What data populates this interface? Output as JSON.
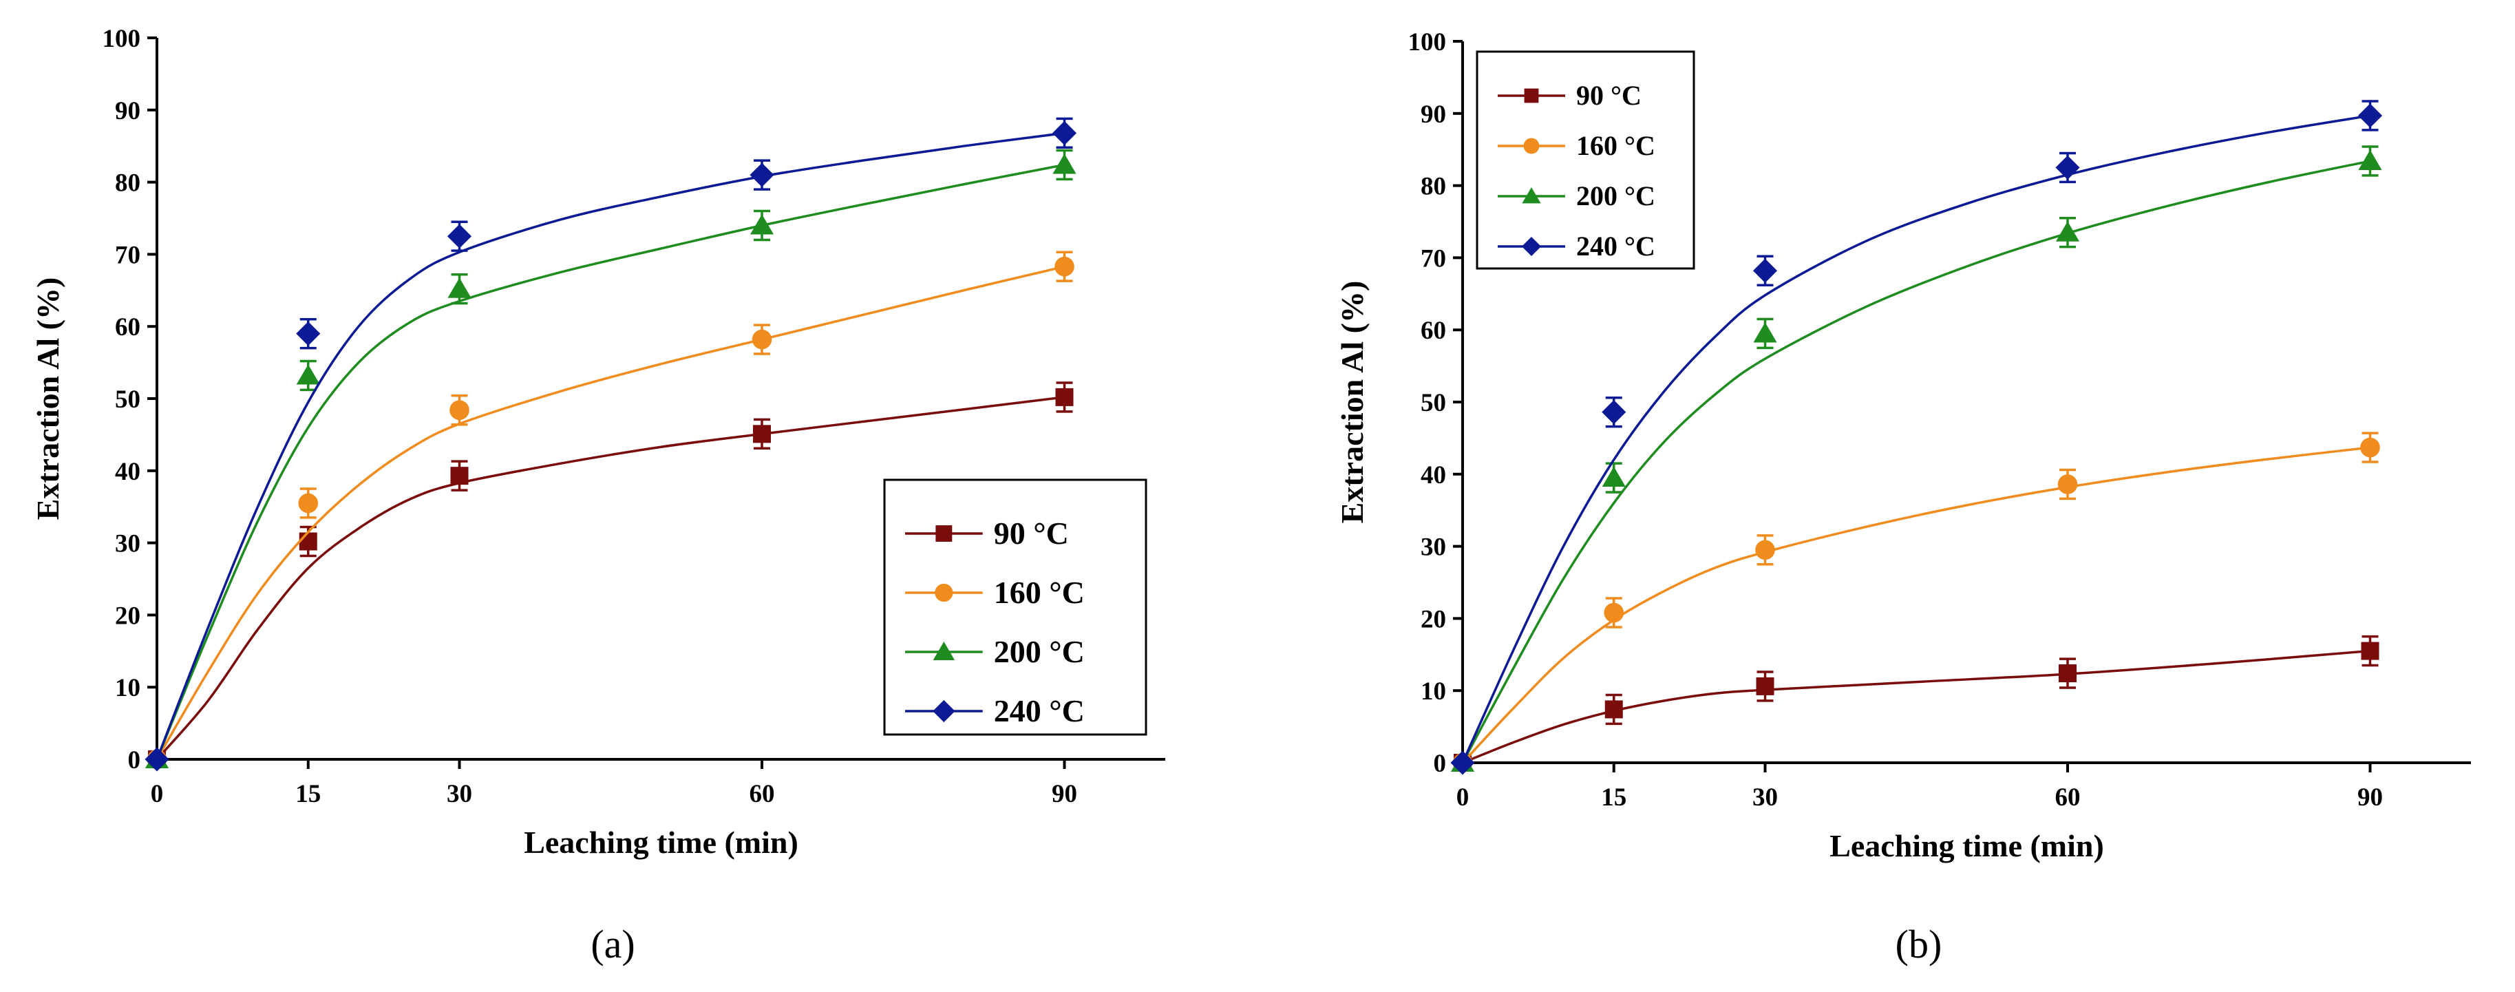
{
  "chart_data": [
    {
      "type": "line",
      "panel_label": "(a)",
      "xlabel": "Leaching time (min)",
      "ylabel": "Extraction Al (%)",
      "x": [
        0,
        15,
        30,
        60,
        90
      ],
      "x_ticks": [
        "0",
        "15",
        "30",
        "60",
        "90"
      ],
      "y_ticks": [
        "0",
        "10",
        "20",
        "30",
        "40",
        "50",
        "60",
        "70",
        "80",
        "90",
        "100"
      ],
      "xlim": [
        0,
        100
      ],
      "ylim": [
        0,
        100
      ],
      "legend_position": "lower-right",
      "series": [
        {
          "name": "90 °C",
          "color": "#7b0c0c",
          "marker": "square",
          "values": [
            0,
            30.2,
            39.3,
            45.1,
            50.2
          ],
          "error": [
            0,
            2,
            2,
            2,
            2
          ],
          "curve": [
            [
              0,
              0
            ],
            [
              5,
              8
            ],
            [
              10,
              18
            ],
            [
              15,
              26.5
            ],
            [
              20,
              32
            ],
            [
              25,
              36
            ],
            [
              30,
              38.3
            ],
            [
              40,
              41
            ],
            [
              50,
              43.3
            ],
            [
              60,
              45.1
            ],
            [
              70,
              46.8
            ],
            [
              80,
              48.5
            ],
            [
              90,
              50.2
            ]
          ]
        },
        {
          "name": "160 °C",
          "color": "#f08c1e",
          "marker": "circle",
          "values": [
            0,
            35.5,
            48.4,
            58.2,
            68.3
          ],
          "error": [
            0,
            2,
            2,
            2,
            2
          ],
          "curve": [
            [
              0,
              0
            ],
            [
              5,
              12
            ],
            [
              10,
              23
            ],
            [
              15,
              31.5
            ],
            [
              20,
              38
            ],
            [
              25,
              43
            ],
            [
              30,
              46.5
            ],
            [
              40,
              51
            ],
            [
              50,
              54.8
            ],
            [
              60,
              58.2
            ],
            [
              70,
              61.6
            ],
            [
              80,
              65
            ],
            [
              90,
              68.3
            ]
          ]
        },
        {
          "name": "200 °C",
          "color": "#1e8c1e",
          "marker": "triangle",
          "values": [
            0,
            53.2,
            65.2,
            74.0,
            82.4
          ],
          "error": [
            0,
            2,
            2,
            2,
            2
          ],
          "curve": [
            [
              0,
              0
            ],
            [
              5,
              17
            ],
            [
              10,
              33
            ],
            [
              15,
              46
            ],
            [
              20,
              55
            ],
            [
              25,
              60.5
            ],
            [
              30,
              63.5
            ],
            [
              40,
              67.5
            ],
            [
              50,
              70.8
            ],
            [
              60,
              74
            ],
            [
              70,
              76.9
            ],
            [
              80,
              79.7
            ],
            [
              90,
              82.4
            ]
          ]
        },
        {
          "name": "240 °C",
          "color": "#0c1a96",
          "marker": "diamond",
          "values": [
            0,
            59.0,
            72.5,
            81.0,
            86.8
          ],
          "error": [
            0,
            2,
            2,
            2,
            2
          ],
          "curve": [
            [
              0,
              0
            ],
            [
              5,
              18
            ],
            [
              10,
              35
            ],
            [
              15,
              49.5
            ],
            [
              20,
              60
            ],
            [
              25,
              66.5
            ],
            [
              30,
              70.3
            ],
            [
              40,
              74.8
            ],
            [
              50,
              78
            ],
            [
              60,
              80.8
            ],
            [
              70,
              83
            ],
            [
              80,
              85
            ],
            [
              90,
              86.8
            ]
          ]
        }
      ]
    },
    {
      "type": "line",
      "panel_label": "(b)",
      "xlabel": "Leaching time (min)",
      "ylabel": "Extraction Al (%)",
      "x": [
        0,
        15,
        30,
        60,
        90
      ],
      "x_ticks": [
        "0",
        "15",
        "30",
        "60",
        "90"
      ],
      "y_ticks": [
        "0",
        "10",
        "20",
        "30",
        "40",
        "50",
        "60",
        "70",
        "80",
        "90",
        "100"
      ],
      "xlim": [
        0,
        100
      ],
      "ylim": [
        0,
        100
      ],
      "legend_position": "top-left",
      "series": [
        {
          "name": "90 °C",
          "color": "#7b0c0c",
          "marker": "square",
          "values": [
            0,
            7.4,
            10.6,
            12.4,
            15.5
          ],
          "error": [
            0,
            2,
            2,
            2,
            2
          ],
          "curve": [
            [
              0,
              0
            ],
            [
              5,
              2.8
            ],
            [
              10,
              5.3
            ],
            [
              15,
              7.2
            ],
            [
              20,
              8.6
            ],
            [
              25,
              9.6
            ],
            [
              30,
              10.1
            ],
            [
              45,
              11.2
            ],
            [
              60,
              12.3
            ],
            [
              75,
              13.8
            ],
            [
              90,
              15.5
            ]
          ]
        },
        {
          "name": "160 °C",
          "color": "#f08c1e",
          "marker": "circle",
          "values": [
            0,
            20.8,
            29.5,
            38.6,
            43.7
          ],
          "error": [
            0,
            2,
            2,
            2,
            2
          ],
          "curve": [
            [
              0,
              0
            ],
            [
              5,
              7.5
            ],
            [
              10,
              14.5
            ],
            [
              15,
              19.8
            ],
            [
              20,
              23.8
            ],
            [
              25,
              27
            ],
            [
              30,
              29.2
            ],
            [
              40,
              32.7
            ],
            [
              50,
              35.7
            ],
            [
              60,
              38.2
            ],
            [
              70,
              40.3
            ],
            [
              80,
              42.1
            ],
            [
              90,
              43.7
            ]
          ]
        },
        {
          "name": "200 °C",
          "color": "#1e8c1e",
          "marker": "triangle",
          "values": [
            0,
            39.5,
            59.5,
            73.5,
            83.4
          ],
          "error": [
            0,
            2,
            2,
            2,
            2
          ],
          "curve": [
            [
              0,
              0
            ],
            [
              5,
              13
            ],
            [
              10,
              25.5
            ],
            [
              15,
              36
            ],
            [
              20,
              44.5
            ],
            [
              25,
              51
            ],
            [
              30,
              56
            ],
            [
              40,
              63.2
            ],
            [
              50,
              68.8
            ],
            [
              60,
              73.4
            ],
            [
              70,
              77.2
            ],
            [
              80,
              80.5
            ],
            [
              90,
              83.4
            ]
          ]
        },
        {
          "name": "240 °C",
          "color": "#0c1a96",
          "marker": "diamond",
          "values": [
            0,
            48.6,
            68.2,
            82.5,
            89.7
          ],
          "error": [
            0,
            2,
            2,
            2,
            2
          ],
          "curve": [
            [
              0,
              0
            ],
            [
              5,
              15.5
            ],
            [
              10,
              30
            ],
            [
              15,
              42
            ],
            [
              20,
              51.5
            ],
            [
              25,
              59
            ],
            [
              30,
              64.8
            ],
            [
              40,
              72.3
            ],
            [
              50,
              77.5
            ],
            [
              60,
              81.5
            ],
            [
              70,
              84.7
            ],
            [
              80,
              87.4
            ],
            [
              90,
              89.7
            ]
          ]
        }
      ]
    }
  ]
}
